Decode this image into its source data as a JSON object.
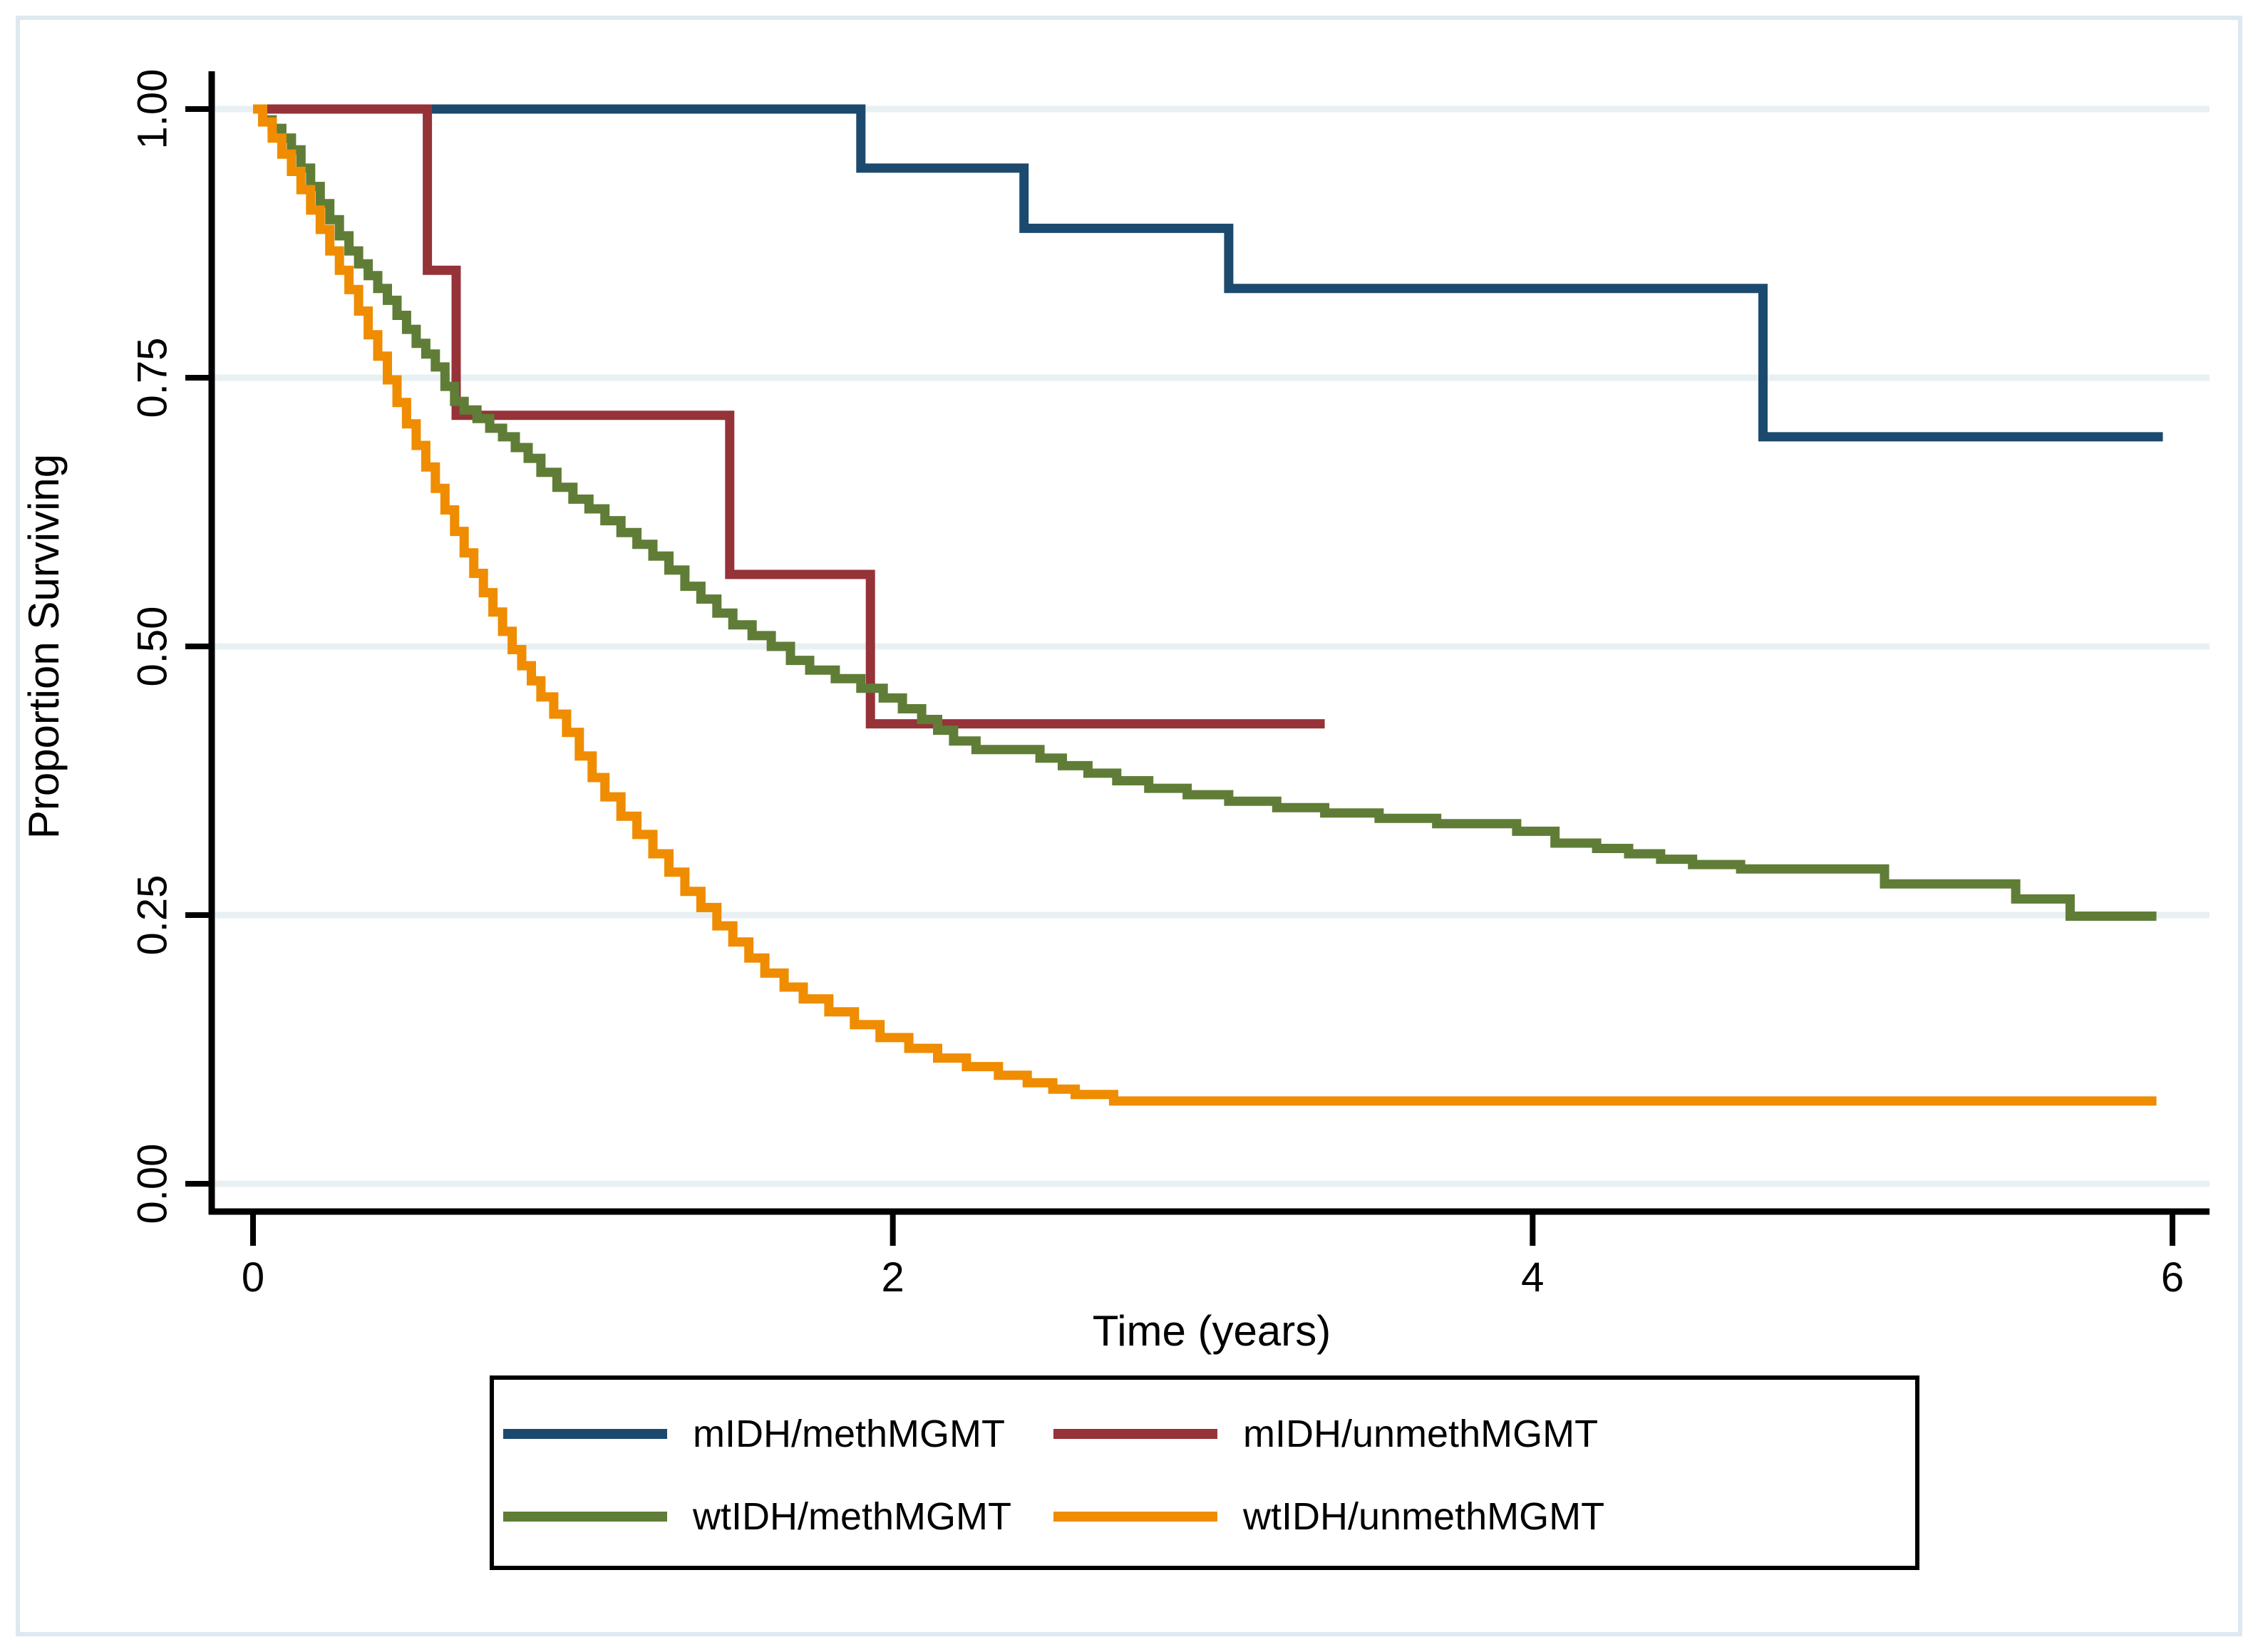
{
  "figure": {
    "background": "#ffffff",
    "border_color": "#dde9ef",
    "axis_color": "#000000",
    "gridline_color": "#e9f0f3"
  },
  "chart_data": {
    "type": "line",
    "subtype": "kaplan-meier-step",
    "title": "",
    "xlabel": "Time (years)",
    "ylabel": "Proportion Surviving",
    "xlim": [
      0,
      6
    ],
    "ylim": [
      0.0,
      1.0
    ],
    "x_ticks": [
      0,
      2,
      4,
      6
    ],
    "x_tick_labels": [
      "0",
      "2",
      "4",
      "6"
    ],
    "y_ticks": [
      1.0,
      0.75,
      0.5,
      0.25,
      0.0
    ],
    "y_tick_labels": [
      "1.00",
      "0.75",
      "0.50",
      "0.25",
      "0.00"
    ],
    "grid": true,
    "legend_position": "bottom-box",
    "legend_layout": {
      "rows": 2,
      "cols": 2
    },
    "series": [
      {
        "name": "mIDH/methMGMT",
        "color": "#1b4a6e",
        "steps": [
          [
            0,
            1.0
          ],
          [
            1.9,
            0.945
          ],
          [
            2.41,
            0.889
          ],
          [
            3.05,
            0.833
          ],
          [
            4.72,
            0.695
          ],
          [
            5.97,
            0.695
          ]
        ]
      },
      {
        "name": "mIDH/unmethMGMT",
        "color": "#953338",
        "steps": [
          [
            0,
            1.0
          ],
          [
            0.545,
            0.85
          ],
          [
            0.635,
            0.715
          ],
          [
            1.49,
            0.567
          ],
          [
            1.93,
            0.428
          ],
          [
            3.35,
            0.428
          ]
        ]
      },
      {
        "name": "wtIDH/methMGMT",
        "color": "#5f7d36",
        "steps": [
          [
            0,
            1.0
          ],
          [
            0.03,
            0.99
          ],
          [
            0.06,
            0.982
          ],
          [
            0.09,
            0.973
          ],
          [
            0.12,
            0.962
          ],
          [
            0.15,
            0.945
          ],
          [
            0.18,
            0.928
          ],
          [
            0.21,
            0.912
          ],
          [
            0.24,
            0.897
          ],
          [
            0.27,
            0.882
          ],
          [
            0.3,
            0.868
          ],
          [
            0.33,
            0.856
          ],
          [
            0.36,
            0.845
          ],
          [
            0.39,
            0.833
          ],
          [
            0.42,
            0.822
          ],
          [
            0.45,
            0.808
          ],
          [
            0.48,
            0.795
          ],
          [
            0.51,
            0.782
          ],
          [
            0.54,
            0.772
          ],
          [
            0.57,
            0.76
          ],
          [
            0.6,
            0.742
          ],
          [
            0.63,
            0.728
          ],
          [
            0.66,
            0.72
          ],
          [
            0.7,
            0.712
          ],
          [
            0.74,
            0.703
          ],
          [
            0.78,
            0.695
          ],
          [
            0.82,
            0.685
          ],
          [
            0.86,
            0.675
          ],
          [
            0.9,
            0.662
          ],
          [
            0.95,
            0.648
          ],
          [
            1.0,
            0.637
          ],
          [
            1.05,
            0.628
          ],
          [
            1.1,
            0.617
          ],
          [
            1.15,
            0.606
          ],
          [
            1.2,
            0.595
          ],
          [
            1.25,
            0.584
          ],
          [
            1.3,
            0.571
          ],
          [
            1.35,
            0.556
          ],
          [
            1.4,
            0.544
          ],
          [
            1.45,
            0.531
          ],
          [
            1.5,
            0.52
          ],
          [
            1.56,
            0.51
          ],
          [
            1.62,
            0.5
          ],
          [
            1.68,
            0.487
          ],
          [
            1.74,
            0.478
          ],
          [
            1.82,
            0.47
          ],
          [
            1.9,
            0.461
          ],
          [
            1.97,
            0.452
          ],
          [
            2.03,
            0.442
          ],
          [
            2.09,
            0.432
          ],
          [
            2.14,
            0.422
          ],
          [
            2.19,
            0.412
          ],
          [
            2.26,
            0.404
          ],
          [
            2.46,
            0.396
          ],
          [
            2.53,
            0.389
          ],
          [
            2.61,
            0.382
          ],
          [
            2.7,
            0.375
          ],
          [
            2.8,
            0.368
          ],
          [
            2.92,
            0.362
          ],
          [
            3.05,
            0.356
          ],
          [
            3.2,
            0.35
          ],
          [
            3.35,
            0.345
          ],
          [
            3.52,
            0.34
          ],
          [
            3.7,
            0.335
          ],
          [
            3.95,
            0.328
          ],
          [
            4.07,
            0.317
          ],
          [
            4.2,
            0.312
          ],
          [
            4.3,
            0.307
          ],
          [
            4.4,
            0.302
          ],
          [
            4.5,
            0.297
          ],
          [
            4.65,
            0.293
          ],
          [
            5.1,
            0.279
          ],
          [
            5.51,
            0.265
          ],
          [
            5.68,
            0.249
          ],
          [
            5.95,
            0.249
          ]
        ]
      },
      {
        "name": "wtIDH/unmethMGMT",
        "color": "#ef8c00",
        "steps": [
          [
            0,
            1.0
          ],
          [
            0.03,
            0.988
          ],
          [
            0.06,
            0.973
          ],
          [
            0.09,
            0.958
          ],
          [
            0.12,
            0.942
          ],
          [
            0.15,
            0.925
          ],
          [
            0.18,
            0.906
          ],
          [
            0.21,
            0.888
          ],
          [
            0.24,
            0.868
          ],
          [
            0.27,
            0.85
          ],
          [
            0.3,
            0.832
          ],
          [
            0.33,
            0.812
          ],
          [
            0.36,
            0.79
          ],
          [
            0.39,
            0.77
          ],
          [
            0.42,
            0.748
          ],
          [
            0.45,
            0.727
          ],
          [
            0.48,
            0.707
          ],
          [
            0.51,
            0.687
          ],
          [
            0.54,
            0.667
          ],
          [
            0.57,
            0.647
          ],
          [
            0.6,
            0.627
          ],
          [
            0.63,
            0.607
          ],
          [
            0.66,
            0.587
          ],
          [
            0.69,
            0.568
          ],
          [
            0.72,
            0.55
          ],
          [
            0.75,
            0.532
          ],
          [
            0.78,
            0.514
          ],
          [
            0.81,
            0.497
          ],
          [
            0.84,
            0.482
          ],
          [
            0.87,
            0.468
          ],
          [
            0.9,
            0.453
          ],
          [
            0.94,
            0.437
          ],
          [
            0.98,
            0.42
          ],
          [
            1.02,
            0.398
          ],
          [
            1.06,
            0.378
          ],
          [
            1.1,
            0.36
          ],
          [
            1.15,
            0.342
          ],
          [
            1.2,
            0.325
          ],
          [
            1.25,
            0.307
          ],
          [
            1.3,
            0.29
          ],
          [
            1.35,
            0.272
          ],
          [
            1.4,
            0.257
          ],
          [
            1.45,
            0.24
          ],
          [
            1.5,
            0.225
          ],
          [
            1.55,
            0.21
          ],
          [
            1.6,
            0.196
          ],
          [
            1.66,
            0.183
          ],
          [
            1.72,
            0.172
          ],
          [
            1.8,
            0.16
          ],
          [
            1.88,
            0.148
          ],
          [
            1.96,
            0.136
          ],
          [
            2.05,
            0.126
          ],
          [
            2.14,
            0.117
          ],
          [
            2.23,
            0.109
          ],
          [
            2.33,
            0.101
          ],
          [
            2.42,
            0.094
          ],
          [
            2.5,
            0.088
          ],
          [
            2.57,
            0.083
          ],
          [
            2.69,
            0.077
          ],
          [
            5.95,
            0.077
          ]
        ]
      }
    ]
  }
}
